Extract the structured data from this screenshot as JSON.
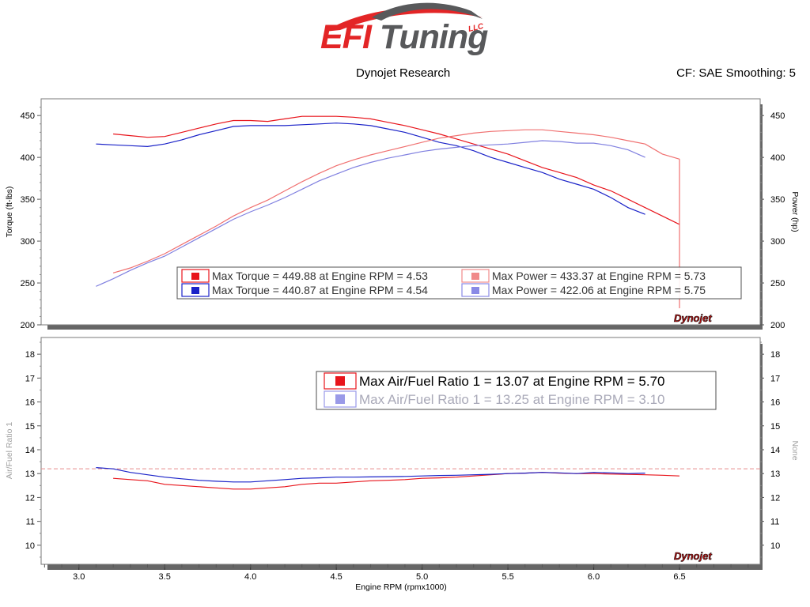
{
  "branding": {
    "logo_main": "EFI",
    "logo_second": "Tuning",
    "logo_llc": "LLC"
  },
  "header": {
    "left": "Dynojet Research",
    "right": "CF: SAE Smoothing: 5"
  },
  "watermark": "Dynojet",
  "colors": {
    "red_run": "#e8141b",
    "blue_run": "#1a22c8",
    "light_red": "#f07070",
    "light_blue": "#8080e0"
  },
  "chart_data": [
    {
      "type": "line",
      "ylabel": "Torque (ft-lbs)",
      "y2label": "Power (hp)",
      "ylim": [
        200,
        470
      ],
      "y2lim": [
        200,
        470
      ],
      "yticks": [
        "200",
        "250",
        "300",
        "350",
        "400",
        "450"
      ],
      "y2ticks": [
        "200",
        "250",
        "300",
        "350",
        "400",
        "450"
      ],
      "grid": false,
      "legend": [
        {
          "text": "Max Torque = 449.88 at Engine RPM = 4.53",
          "color": "#e8141b"
        },
        {
          "text": "Max Torque = 440.87 at Engine RPM = 4.54",
          "color": "#1a22c8"
        },
        {
          "text": "Max Power = 433.37 at Engine RPM = 5.73",
          "color": "#f08a8a"
        },
        {
          "text": "Max Power = 422.06 at Engine RPM = 5.75",
          "color": "#8a8ae6"
        }
      ],
      "series": [
        {
          "color": "#e8141b",
          "axis": "left",
          "x": [
            3.2,
            3.3,
            3.4,
            3.5,
            3.6,
            3.7,
            3.8,
            3.9,
            4.0,
            4.1,
            4.2,
            4.3,
            4.4,
            4.5,
            4.6,
            4.7,
            4.8,
            4.9,
            5.0,
            5.1,
            5.2,
            5.3,
            5.4,
            5.5,
            5.6,
            5.7,
            5.8,
            5.9,
            6.0,
            6.1,
            6.2,
            6.3,
            6.4,
            6.5
          ],
          "y": [
            428,
            426,
            424,
            425,
            430,
            435,
            440,
            444,
            444,
            443,
            446,
            449,
            449,
            449,
            448,
            446,
            442,
            438,
            433,
            428,
            422,
            416,
            410,
            404,
            396,
            388,
            382,
            376,
            367,
            360,
            350,
            340,
            330,
            320
          ]
        },
        {
          "color": "#1a22c8",
          "axis": "left",
          "x": [
            3.1,
            3.2,
            3.3,
            3.4,
            3.5,
            3.6,
            3.7,
            3.8,
            3.9,
            4.0,
            4.1,
            4.2,
            4.3,
            4.4,
            4.5,
            4.6,
            4.7,
            4.8,
            4.9,
            5.0,
            5.1,
            5.2,
            5.3,
            5.4,
            5.5,
            5.6,
            5.7,
            5.8,
            5.9,
            6.0,
            6.1,
            6.2,
            6.3
          ],
          "y": [
            416,
            415,
            414,
            413,
            416,
            421,
            427,
            432,
            437,
            438,
            438,
            438,
            439,
            440,
            441,
            440,
            438,
            434,
            430,
            424,
            418,
            414,
            408,
            400,
            394,
            388,
            382,
            374,
            368,
            362,
            352,
            340,
            332
          ]
        },
        {
          "color": "#f07070",
          "axis": "right",
          "x": [
            3.2,
            3.3,
            3.4,
            3.5,
            3.6,
            3.7,
            3.8,
            3.9,
            4.0,
            4.1,
            4.2,
            4.3,
            4.4,
            4.5,
            4.6,
            4.7,
            4.8,
            4.9,
            5.0,
            5.1,
            5.2,
            5.3,
            5.4,
            5.5,
            5.6,
            5.7,
            5.8,
            5.9,
            6.0,
            6.1,
            6.2,
            6.3,
            6.4,
            6.5
          ],
          "y": [
            262,
            268,
            276,
            285,
            296,
            307,
            318,
            330,
            340,
            349,
            360,
            371,
            381,
            390,
            397,
            403,
            408,
            413,
            418,
            423,
            426,
            429,
            431,
            432,
            433,
            433,
            431,
            429,
            427,
            424,
            420,
            416,
            404,
            398
          ]
        },
        {
          "color": "#8080e0",
          "axis": "right",
          "x": [
            3.1,
            3.2,
            3.3,
            3.4,
            3.5,
            3.6,
            3.7,
            3.8,
            3.9,
            4.0,
            4.1,
            4.2,
            4.3,
            4.4,
            4.5,
            4.6,
            4.7,
            4.8,
            4.9,
            5.0,
            5.1,
            5.2,
            5.3,
            5.4,
            5.5,
            5.6,
            5.7,
            5.8,
            5.9,
            6.0,
            6.1,
            6.2,
            6.3
          ],
          "y": [
            246,
            255,
            265,
            274,
            282,
            293,
            304,
            315,
            326,
            335,
            343,
            352,
            362,
            372,
            380,
            388,
            394,
            399,
            403,
            407,
            410,
            412,
            414,
            415,
            416,
            418,
            420,
            419,
            417,
            417,
            414,
            409,
            400
          ]
        }
      ]
    },
    {
      "type": "line",
      "xlabel": "Engine RPM (rpmx1000)",
      "ylabel": "Air/Fuel Ratio 1",
      "y2label": "None",
      "xlim": [
        2.78,
        6.97
      ],
      "xticks": [
        "3.0",
        "3.5",
        "4.0",
        "4.5",
        "5.0",
        "5.5",
        "6.0",
        "6.5"
      ],
      "ylim": [
        9.2,
        18.7
      ],
      "yticks": [
        "10",
        "11",
        "12",
        "13",
        "14",
        "15",
        "16",
        "17",
        "18"
      ],
      "y2ticks": [
        "10",
        "11",
        "12",
        "13",
        "14",
        "15",
        "16",
        "17",
        "18"
      ],
      "reference_line": 13.2,
      "grid": false,
      "legend": [
        {
          "text": "Max Air/Fuel Ratio 1 = 13.07 at Engine RPM = 5.70",
          "color": "#e8141b"
        },
        {
          "text": "Max Air/Fuel Ratio 1 = 13.25 at Engine RPM = 3.10",
          "color": "#9a9ae8"
        }
      ],
      "series": [
        {
          "color": "#e8141b",
          "x": [
            3.2,
            3.3,
            3.4,
            3.5,
            3.6,
            3.7,
            3.8,
            3.9,
            4.0,
            4.1,
            4.2,
            4.3,
            4.4,
            4.5,
            4.6,
            4.7,
            4.8,
            4.9,
            5.0,
            5.1,
            5.2,
            5.3,
            5.4,
            5.5,
            5.6,
            5.7,
            5.8,
            5.9,
            6.0,
            6.1,
            6.2,
            6.3,
            6.4,
            6.5
          ],
          "y": [
            12.8,
            12.75,
            12.7,
            12.55,
            12.5,
            12.45,
            12.4,
            12.35,
            12.35,
            12.4,
            12.45,
            12.55,
            12.6,
            12.6,
            12.65,
            12.7,
            12.72,
            12.75,
            12.8,
            12.82,
            12.85,
            12.9,
            12.95,
            13.0,
            13.02,
            13.05,
            13.02,
            13.0,
            13.0,
            12.98,
            12.97,
            12.95,
            12.93,
            12.9
          ]
        },
        {
          "color": "#1a22c8",
          "x": [
            3.1,
            3.2,
            3.3,
            3.4,
            3.5,
            3.6,
            3.7,
            3.8,
            3.9,
            4.0,
            4.1,
            4.2,
            4.3,
            4.4,
            4.5,
            4.6,
            4.7,
            4.8,
            4.9,
            5.0,
            5.1,
            5.2,
            5.3,
            5.4,
            5.5,
            5.6,
            5.7,
            5.8,
            5.9,
            6.0,
            6.1,
            6.2,
            6.3
          ],
          "y": [
            13.25,
            13.2,
            13.05,
            12.95,
            12.85,
            12.78,
            12.72,
            12.68,
            12.65,
            12.65,
            12.7,
            12.75,
            12.8,
            12.82,
            12.85,
            12.85,
            12.86,
            12.87,
            12.88,
            12.9,
            12.92,
            12.93,
            12.95,
            12.97,
            13.0,
            13.02,
            13.05,
            13.03,
            13.0,
            13.05,
            13.03,
            13.0,
            13.02
          ]
        }
      ]
    }
  ]
}
